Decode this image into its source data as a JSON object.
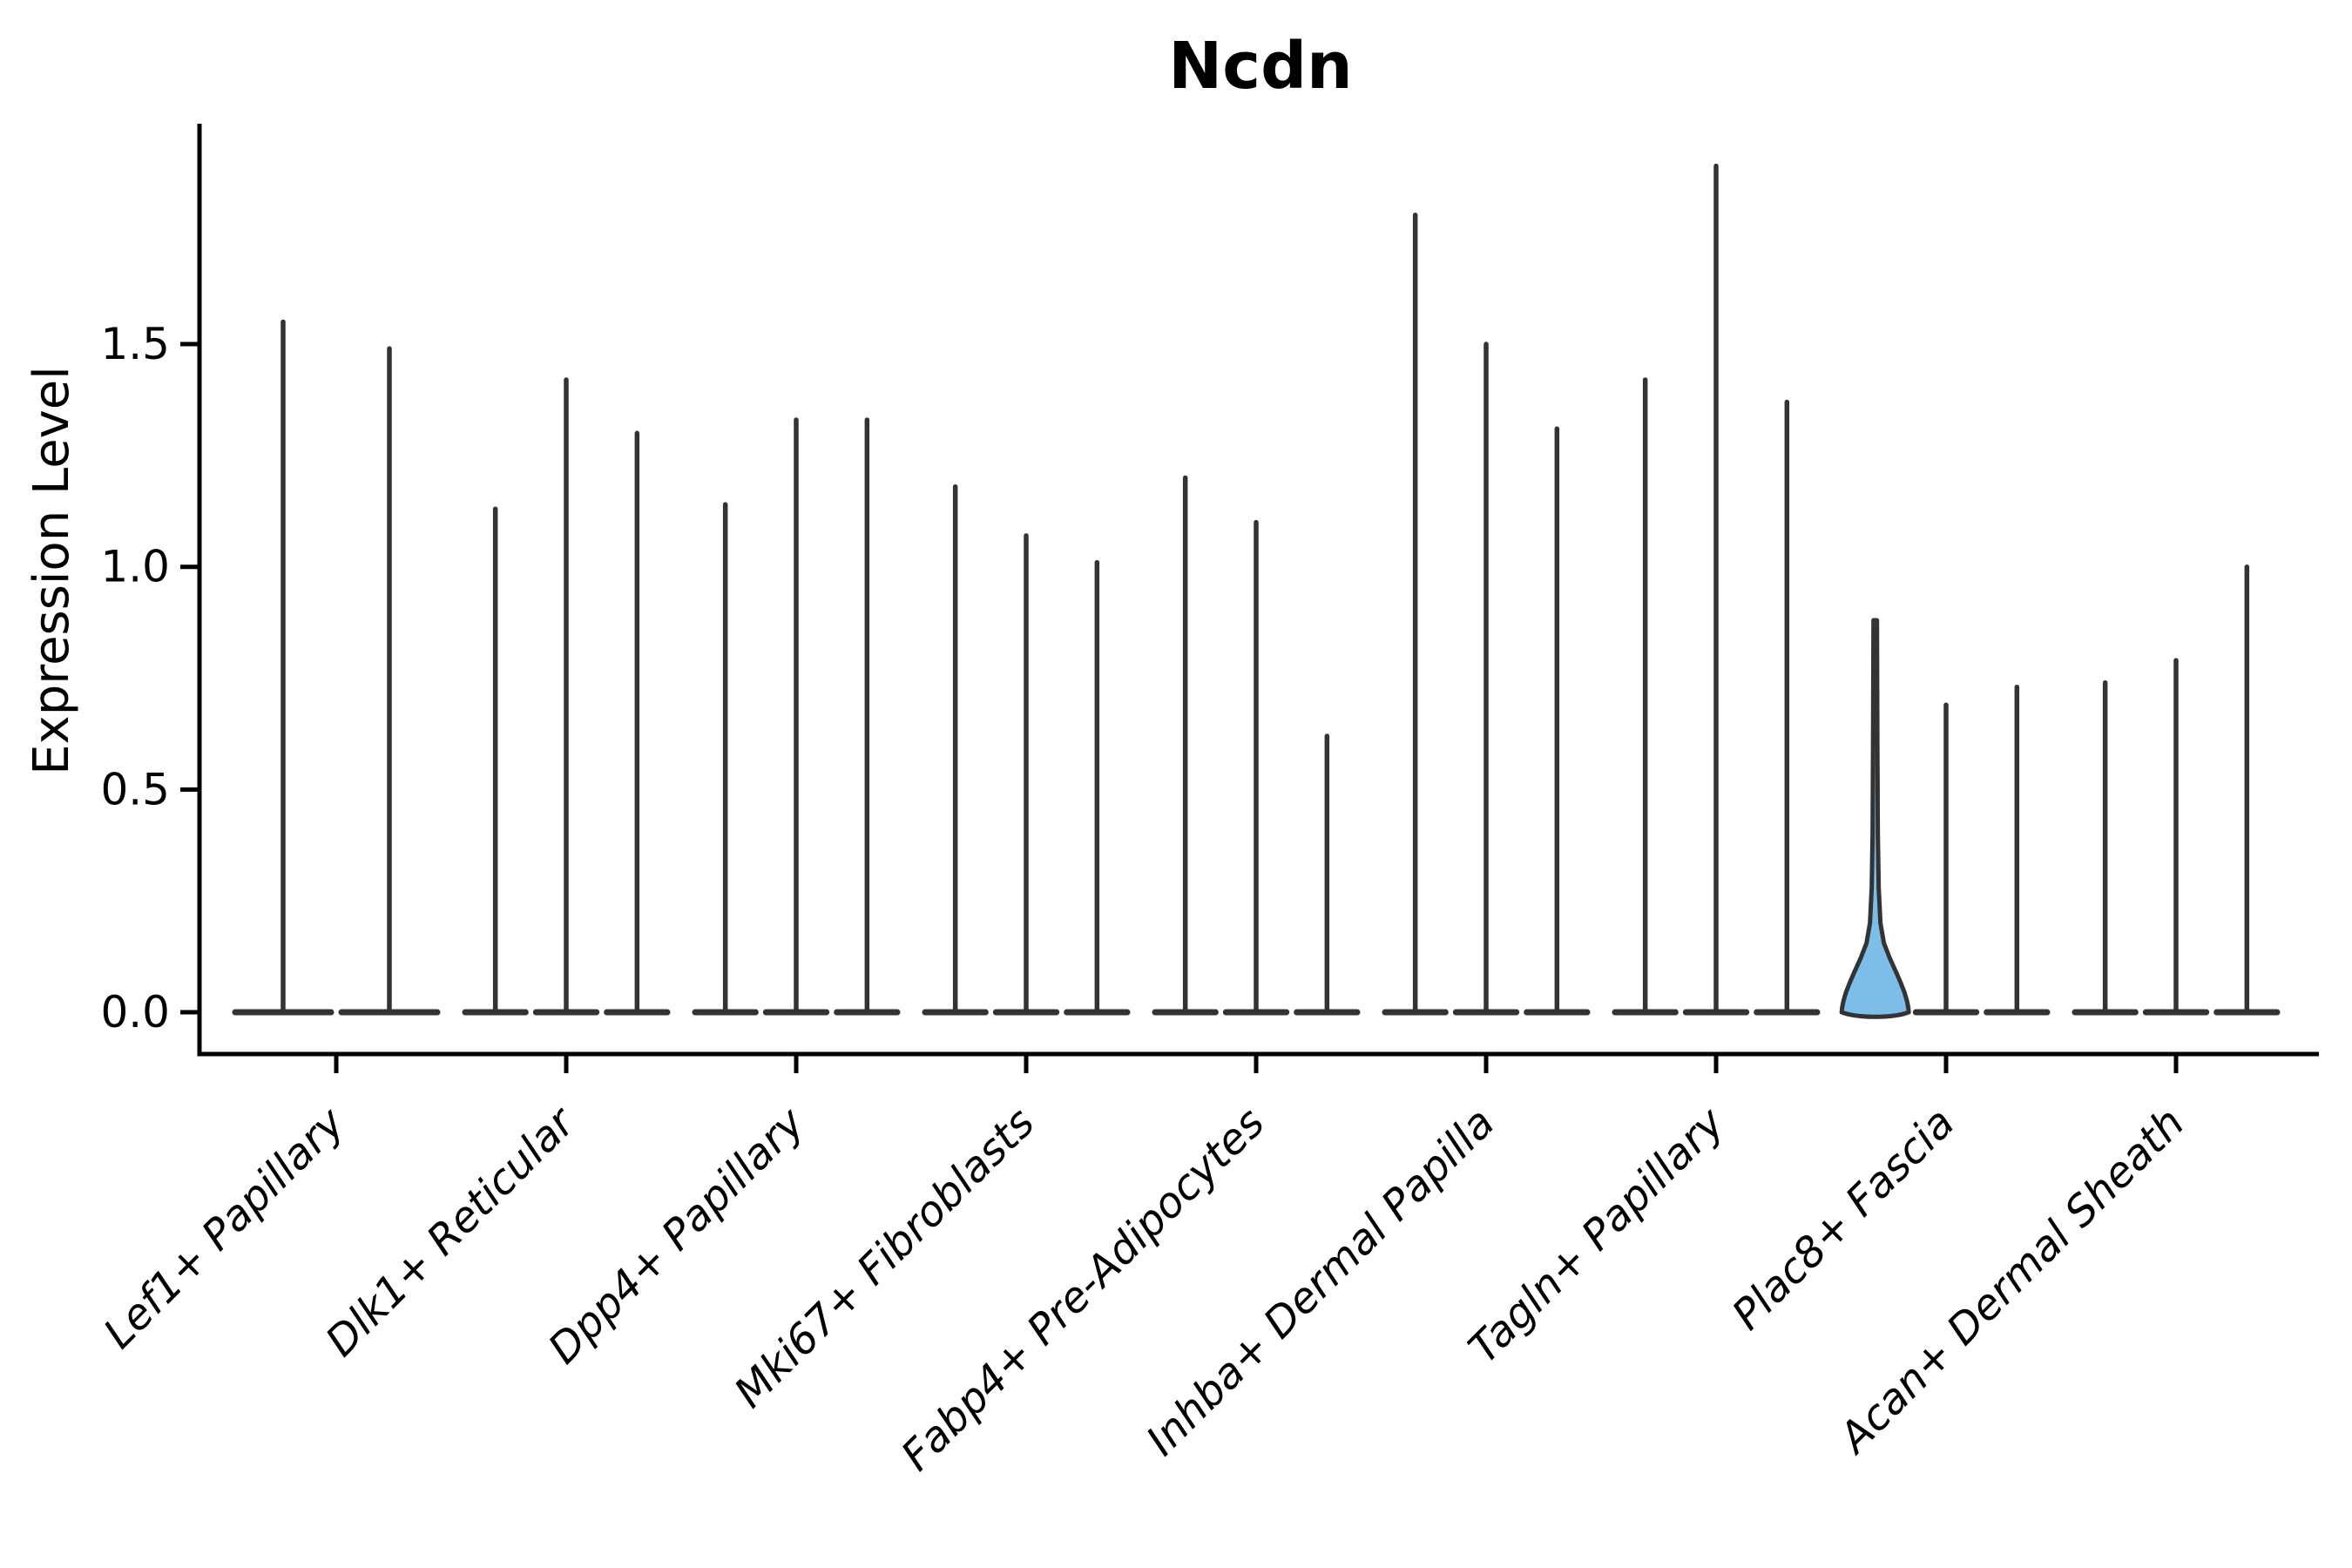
{
  "title": "Ncdn",
  "y_axis": {
    "label": "Expression Level",
    "tick_labels": [
      "0.0",
      "0.5",
      "1.0",
      "1.5"
    ],
    "tick_values": [
      0.0,
      0.5,
      1.0,
      1.5
    ]
  },
  "chart_data": {
    "type": "violin",
    "title": "Ncdn",
    "xlabel": "",
    "ylabel": "Expression Level",
    "ylim": [
      -0.09,
      1.99
    ],
    "grid": false,
    "legend": false,
    "background": "#ffffff",
    "line_color": "#333333",
    "axis_color": "#000000",
    "highlight_fill": "#7dbee8",
    "categories": [
      "Lef1+ Papillary",
      "Dlk1+ Reticular",
      "Dpp4+ Papillary",
      "Mki67+ Fibroblasts",
      "Fabp4+ Pre-Adipocytes",
      "Inhba+ Dermal Papilla",
      "Tagln+ Papillary",
      "Plac8+ Fascia",
      "Acan+ Dermal Sheath"
    ],
    "groups": [
      {
        "label": "Lef1+ Papillary",
        "violins": [
          {
            "max": 1.55
          },
          {
            "max": 1.49
          }
        ]
      },
      {
        "label": "Dlk1+ Reticular",
        "violins": [
          {
            "max": 1.13
          },
          {
            "max": 1.42
          },
          {
            "max": 1.3
          }
        ]
      },
      {
        "label": "Dpp4+ Papillary",
        "violins": [
          {
            "max": 1.14
          },
          {
            "max": 1.33
          },
          {
            "max": 1.33
          }
        ]
      },
      {
        "label": "Mki67+ Fibroblasts",
        "violins": [
          {
            "max": 1.18
          },
          {
            "max": 1.07
          },
          {
            "max": 1.01
          }
        ]
      },
      {
        "label": "Fabp4+ Pre-Adipocytes",
        "violins": [
          {
            "max": 1.2
          },
          {
            "max": 1.1
          },
          {
            "max": 0.62
          }
        ]
      },
      {
        "label": "Inhba+ Dermal Papilla",
        "violins": [
          {
            "max": 1.79
          },
          {
            "max": 1.5
          },
          {
            "max": 1.31
          }
        ]
      },
      {
        "label": "Tagln+ Papillary",
        "violins": [
          {
            "max": 1.42
          },
          {
            "max": 1.9
          },
          {
            "max": 1.37
          }
        ]
      },
      {
        "label": "Plac8+ Fascia",
        "violins": [
          {
            "max": 0.88,
            "filled": true,
            "fill": "#7dbee8"
          },
          {
            "max": 0.69
          },
          {
            "max": 0.73
          }
        ]
      },
      {
        "label": "Acan+ Dermal Sheath",
        "violins": [
          {
            "max": 0.74
          },
          {
            "max": 0.79
          },
          {
            "max": 1.0
          }
        ]
      }
    ]
  }
}
